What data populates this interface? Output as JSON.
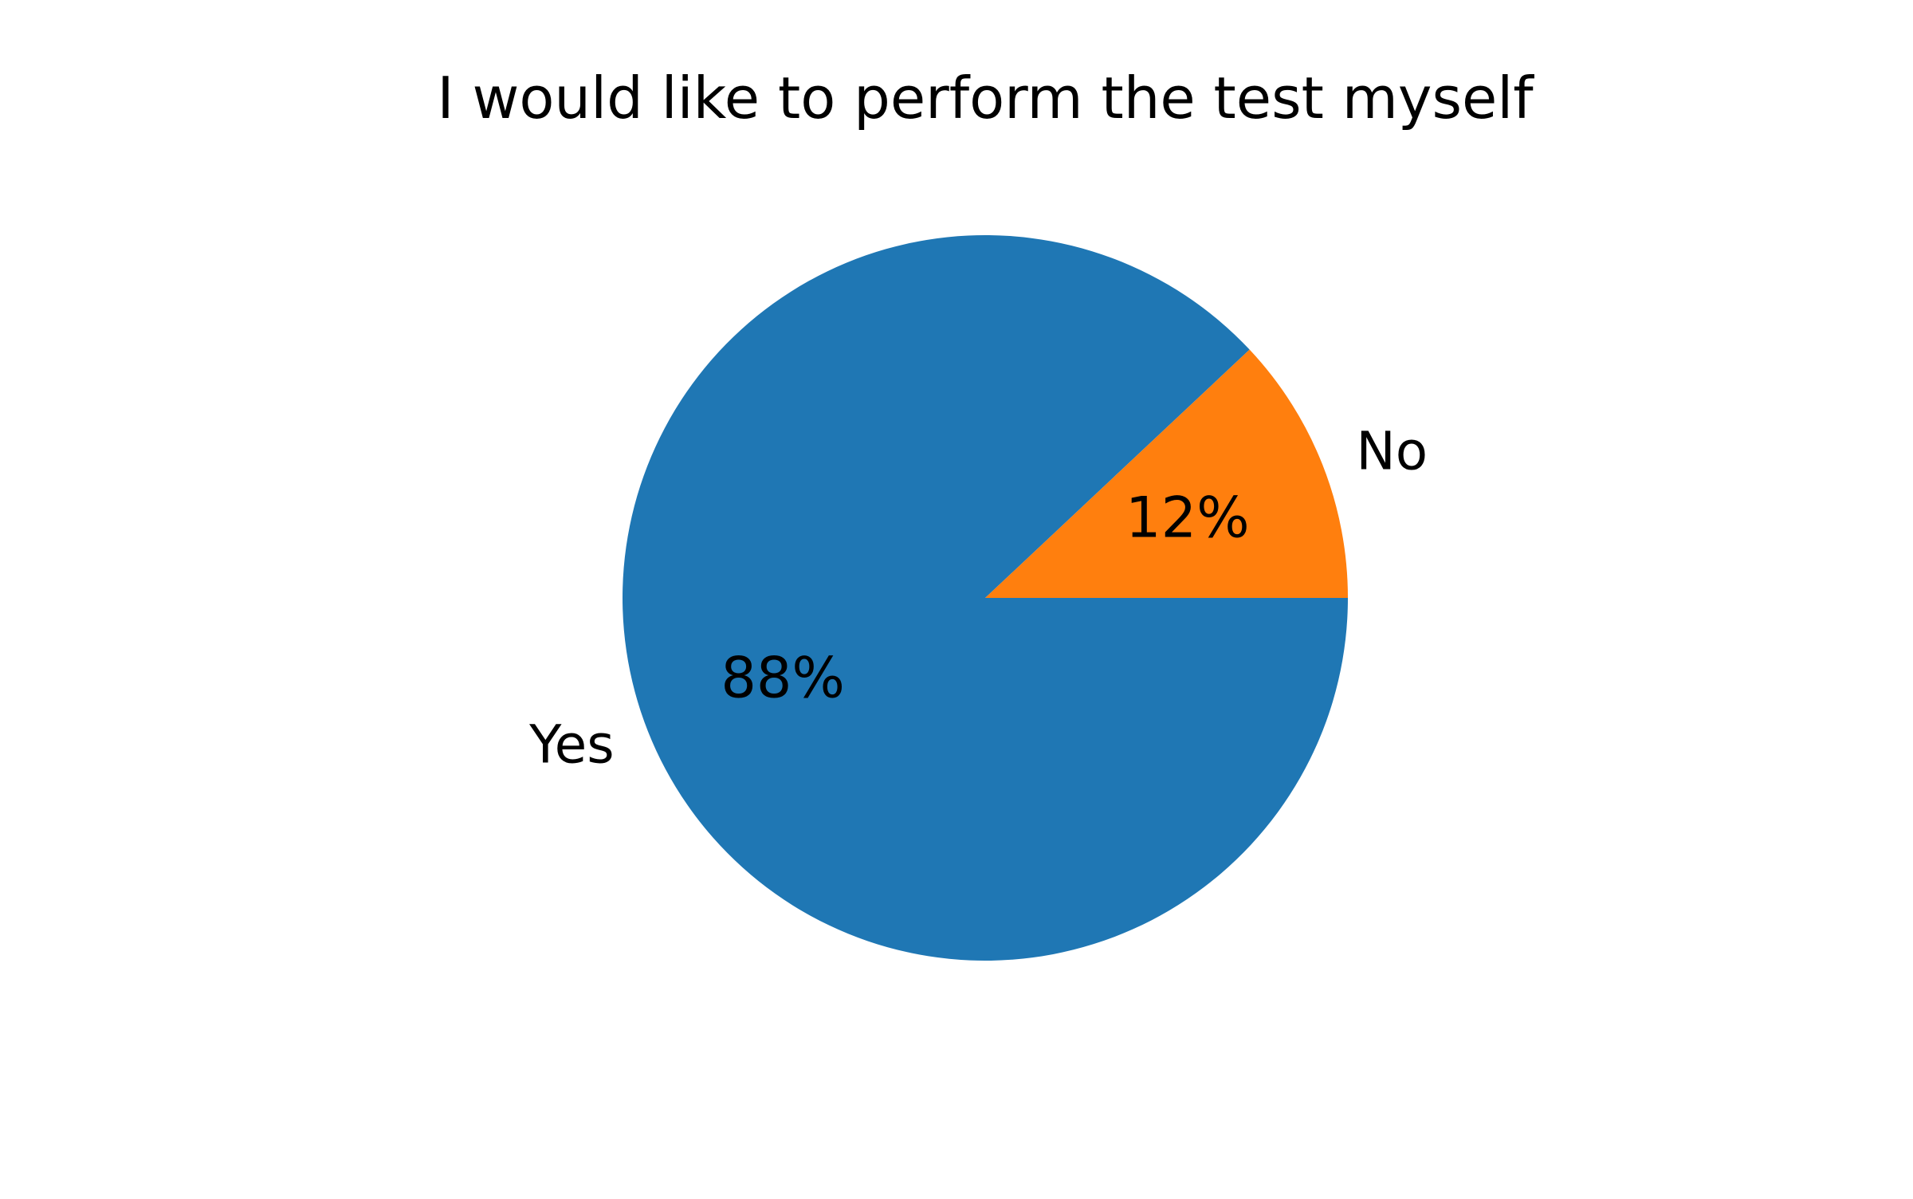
{
  "chart_data": {
    "type": "pie",
    "title": "I would like to perform the test myself",
    "categories": [
      "Yes",
      "No"
    ],
    "values": [
      88,
      12
    ],
    "value_labels": [
      "88%",
      "12%"
    ],
    "colors": [
      "#1f77b4",
      "#ff7f0e"
    ],
    "start_direction": "east",
    "rotation": "clockwise",
    "legend": "none"
  }
}
